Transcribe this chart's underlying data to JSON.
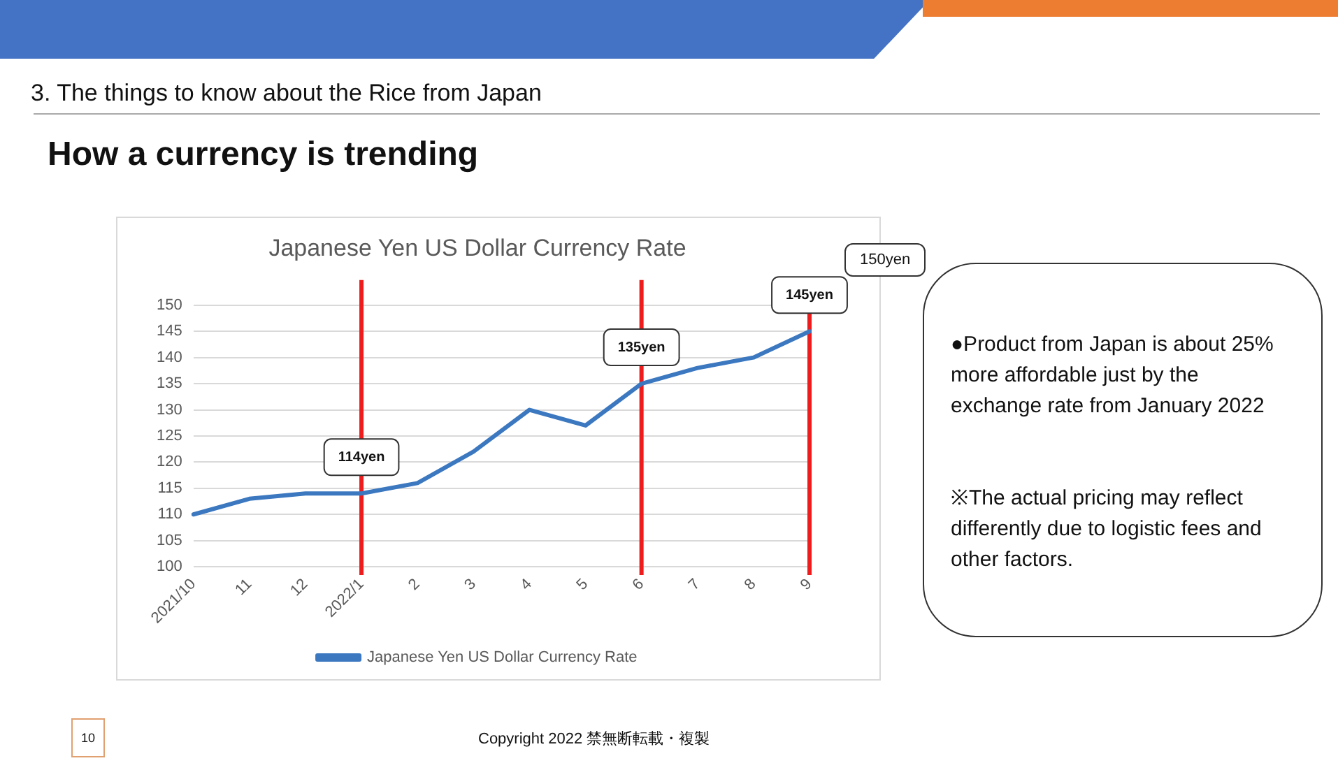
{
  "chart_data": {
    "type": "line",
    "title": "Japanese Yen US Dollar Currency Rate",
    "categories": [
      "2021/10",
      "11",
      "12",
      "2022/1",
      "2",
      "3",
      "4",
      "5",
      "6",
      "7",
      "8",
      "9"
    ],
    "series": [
      {
        "name": "Japanese Yen US Dollar Currency Rate",
        "color": "#3b78c0",
        "values": [
          110,
          113,
          114,
          114,
          116,
          122,
          130,
          127,
          135,
          138,
          140,
          145
        ]
      }
    ],
    "ylim": [
      100,
      150
    ],
    "yticks": [
      100,
      105,
      110,
      115,
      120,
      125,
      130,
      135,
      140,
      145,
      150
    ],
    "grid": "y",
    "legend": "bottom",
    "marker": "none",
    "line_style": "solid",
    "ref_lines": [
      {
        "axis": "x",
        "value": "2022/1",
        "label": "114yen",
        "color": "#ee1c1c"
      },
      {
        "axis": "x",
        "value": "6",
        "label": "135yen",
        "color": "#ee1c1c"
      },
      {
        "axis": "x",
        "value": "9",
        "label": "145yen",
        "color": "#ee1c1c"
      }
    ],
    "annotations": [
      "3.  The things to know about the Rice from Japan",
      "How a currency is trending",
      "150yen",
      "●Product from Japan is about 25% more affordable just by the exchange rate from January 2022",
      "※The actual pricing may reflect differently due to logistic fees and other factors.",
      "10",
      "Copyright 2022 禁無断転載・複製"
    ]
  }
}
